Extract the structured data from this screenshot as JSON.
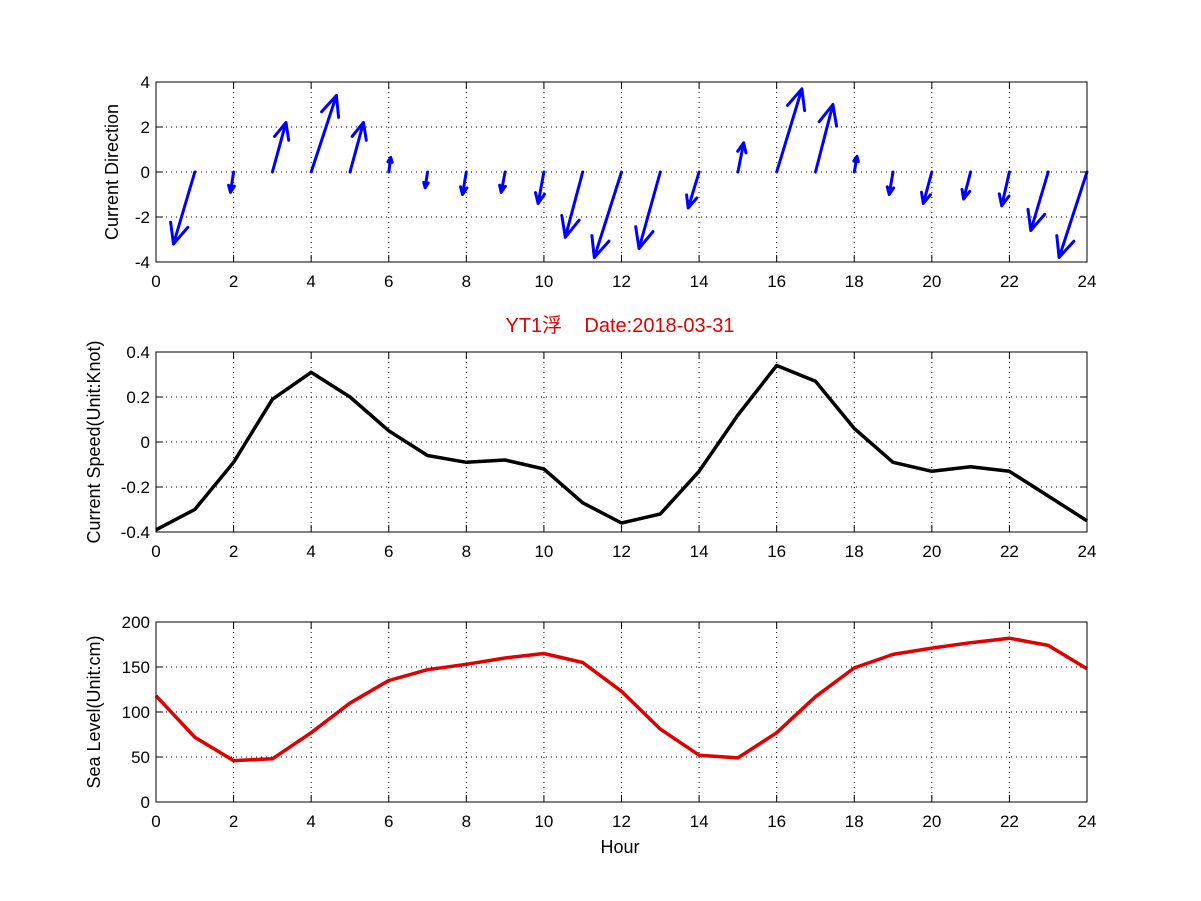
{
  "chart_data": [
    {
      "type": "quiver",
      "ylabel": "Current Direction",
      "xlim": [
        0,
        24
      ],
      "ylim": [
        -4,
        4
      ],
      "xticks": [
        0,
        2,
        4,
        6,
        8,
        10,
        12,
        14,
        16,
        18,
        20,
        22,
        24
      ],
      "yticks": [
        -4,
        -2,
        0,
        2,
        4
      ],
      "grid": true,
      "color": "#0000ff",
      "x": [
        1,
        2,
        3,
        4,
        5,
        6,
        7,
        8,
        9,
        10,
        11,
        12,
        13,
        14,
        15,
        16,
        17,
        18,
        19,
        20,
        21,
        22,
        23,
        24
      ],
      "u": [
        -0.55,
        -0.08,
        0.35,
        0.65,
        0.35,
        0.05,
        -0.06,
        -0.1,
        -0.1,
        -0.15,
        -0.45,
        -0.7,
        -0.55,
        -0.28,
        0.15,
        0.65,
        0.45,
        0.07,
        -0.1,
        -0.22,
        -0.18,
        -0.2,
        -0.45,
        -0.72
      ],
      "v": [
        -3.2,
        -0.9,
        2.2,
        3.4,
        2.2,
        0.65,
        -0.7,
        -1.0,
        -0.9,
        -1.4,
        -2.9,
        -3.8,
        -3.4,
        -1.6,
        1.3,
        3.7,
        3.0,
        0.7,
        -1.0,
        -1.4,
        -1.2,
        -1.5,
        -2.6,
        -3.8
      ]
    },
    {
      "type": "line",
      "title": "YT1浮    Date:2018-03-31",
      "ylabel": "Current Speed(Unit:Knot)",
      "xlim": [
        0,
        24
      ],
      "ylim": [
        -0.4,
        0.4
      ],
      "xticks": [
        0,
        2,
        4,
        6,
        8,
        10,
        12,
        14,
        16,
        18,
        20,
        22,
        24
      ],
      "yticks": [
        -0.4,
        -0.2,
        0,
        0.2,
        0.4
      ],
      "grid": true,
      "color": "#000000",
      "x": [
        0,
        1,
        2,
        3,
        4,
        5,
        6,
        7,
        8,
        9,
        10,
        11,
        12,
        13,
        14,
        15,
        16,
        17,
        18,
        19,
        20,
        21,
        22,
        23,
        24
      ],
      "y": [
        -0.39,
        -0.3,
        -0.09,
        0.19,
        0.31,
        0.2,
        0.05,
        -0.06,
        -0.09,
        -0.08,
        -0.12,
        -0.27,
        -0.36,
        -0.32,
        -0.13,
        0.12,
        0.34,
        0.27,
        0.06,
        -0.09,
        -0.13,
        -0.11,
        -0.13,
        -0.24,
        -0.35
      ]
    },
    {
      "type": "line",
      "xlabel": "Hour",
      "ylabel": "Sea Level(Unit:cm)",
      "xlim": [
        0,
        24
      ],
      "ylim": [
        0,
        200
      ],
      "xticks": [
        0,
        2,
        4,
        6,
        8,
        10,
        12,
        14,
        16,
        18,
        20,
        22,
        24
      ],
      "yticks": [
        0,
        50,
        100,
        150,
        200
      ],
      "grid": true,
      "color": "#e00000",
      "x": [
        0,
        1,
        2,
        3,
        4,
        5,
        6,
        7,
        8,
        9,
        10,
        11,
        12,
        13,
        14,
        15,
        16,
        17,
        18,
        19,
        20,
        21,
        22,
        23,
        24
      ],
      "y": [
        118,
        72,
        46,
        48,
        77,
        110,
        135,
        147,
        153,
        160,
        165,
        155,
        123,
        81,
        52,
        49,
        77,
        117,
        149,
        164,
        171,
        177,
        182,
        174,
        148
      ]
    }
  ]
}
